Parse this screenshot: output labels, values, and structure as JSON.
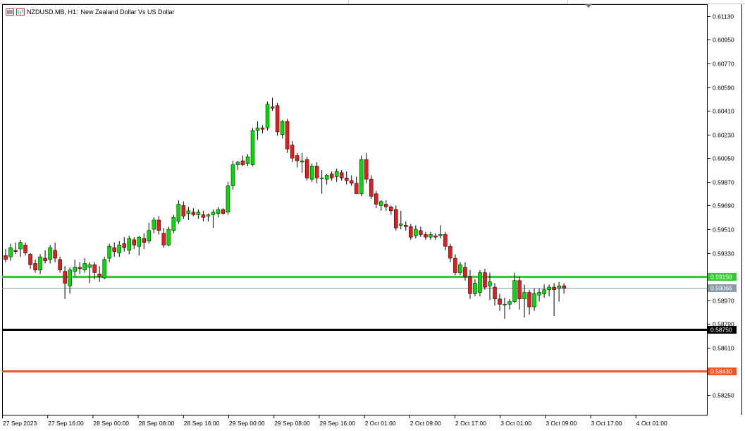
{
  "window": {
    "symbol_label": "NZDUSD.MB, H1:",
    "description": "New Zealand Dollar Vs US Dollar",
    "icons": [
      "chart-window-icon",
      "chart-type-icon"
    ]
  },
  "chart_data": {
    "type": "candlestick",
    "symbol": "NZDUSD.MB",
    "timeframe": "H1",
    "title": "New Zealand Dollar Vs US Dollar",
    "ylim": [
      0.581,
      0.6122
    ],
    "y_ticks": [
      "0.61130",
      "0.60950",
      "0.60770",
      "0.60590",
      "0.60410",
      "0.60230",
      "0.60050",
      "0.59870",
      "0.59690",
      "0.59510",
      "0.59330",
      "0.59150",
      "0.58970",
      "0.58790",
      "0.58610",
      "0.58430",
      "0.58250"
    ],
    "x_ticks": [
      "27 Sep 2023",
      "27 Sep 16:00",
      "28 Sep 00:00",
      "28 Sep 08:00",
      "28 Sep 16:00",
      "29 Sep 00:00",
      "29 Sep 08:00",
      "29 Sep 16:00",
      "2 Oct 01:00",
      "2 Oct 09:00",
      "2 Oct 17:00",
      "3 Oct 01:00",
      "3 Oct 09:00",
      "3 Oct 17:00",
      "4 Oct 01:00"
    ],
    "colors": {
      "up": "#00e000",
      "down": "#e31c1c",
      "grid_line": "#7f8c8d",
      "axis": "#000000"
    },
    "horizontal_lines": [
      {
        "price": 0.5915,
        "label": "0.59150",
        "color": "#33cc33"
      },
      {
        "price": 0.59066,
        "label": "0.59066",
        "color": "#8a9aa6",
        "kind": "bid"
      },
      {
        "price": 0.5875,
        "label": "0.58750",
        "color": "#000000"
      },
      {
        "price": 0.5843,
        "label": "0.58430",
        "color": "#ee5522"
      }
    ],
    "candles": [
      [
        0.5931,
        0.5936,
        0.5926,
        0.5928
      ],
      [
        0.593,
        0.594,
        0.5927,
        0.5937
      ],
      [
        0.5935,
        0.5941,
        0.5932,
        0.5934
      ],
      [
        0.5936,
        0.5943,
        0.593,
        0.5941
      ],
      [
        0.5939,
        0.5941,
        0.5931,
        0.5933
      ],
      [
        0.5932,
        0.5933,
        0.5921,
        0.5924
      ],
      [
        0.5925,
        0.5928,
        0.5918,
        0.592
      ],
      [
        0.592,
        0.5932,
        0.5917,
        0.593
      ],
      [
        0.5929,
        0.5935,
        0.5925,
        0.5927
      ],
      [
        0.5928,
        0.5939,
        0.5925,
        0.5937
      ],
      [
        0.5935,
        0.5941,
        0.5926,
        0.5929
      ],
      [
        0.5928,
        0.593,
        0.5918,
        0.592
      ],
      [
        0.5919,
        0.5923,
        0.5898,
        0.591
      ],
      [
        0.5908,
        0.5922,
        0.5902,
        0.592
      ],
      [
        0.5919,
        0.5928,
        0.5915,
        0.5922
      ],
      [
        0.5922,
        0.5926,
        0.5917,
        0.5921
      ],
      [
        0.592,
        0.5929,
        0.5918,
        0.5925
      ],
      [
        0.5922,
        0.5926,
        0.591,
        0.5924
      ],
      [
        0.5924,
        0.5926,
        0.5913,
        0.5918
      ],
      [
        0.5917,
        0.5923,
        0.5911,
        0.5915
      ],
      [
        0.5914,
        0.593,
        0.5913,
        0.5928
      ],
      [
        0.5929,
        0.594,
        0.5926,
        0.5938
      ],
      [
        0.5937,
        0.5941,
        0.593,
        0.5934
      ],
      [
        0.5933,
        0.5942,
        0.593,
        0.5939
      ],
      [
        0.594,
        0.5945,
        0.5934,
        0.5937
      ],
      [
        0.5935,
        0.5946,
        0.5932,
        0.5944
      ],
      [
        0.5943,
        0.5945,
        0.5936,
        0.5939
      ],
      [
        0.5938,
        0.5946,
        0.5931,
        0.5945
      ],
      [
        0.5944,
        0.5948,
        0.5936,
        0.5941
      ],
      [
        0.5942,
        0.5956,
        0.594,
        0.595
      ],
      [
        0.5951,
        0.596,
        0.5948,
        0.5958
      ],
      [
        0.5958,
        0.5961,
        0.5947,
        0.595
      ],
      [
        0.5948,
        0.5952,
        0.5937,
        0.5939
      ],
      [
        0.5939,
        0.5953,
        0.5938,
        0.5951
      ],
      [
        0.595,
        0.5962,
        0.5948,
        0.596
      ],
      [
        0.5957,
        0.5973,
        0.5955,
        0.597
      ],
      [
        0.5969,
        0.5972,
        0.5959,
        0.5961
      ],
      [
        0.5963,
        0.5968,
        0.5958,
        0.5965
      ],
      [
        0.5964,
        0.5967,
        0.5961,
        0.5962
      ],
      [
        0.5962,
        0.5966,
        0.5959,
        0.5964
      ],
      [
        0.5962,
        0.5965,
        0.5957,
        0.596
      ],
      [
        0.5961,
        0.5963,
        0.5957,
        0.5962
      ],
      [
        0.5962,
        0.5966,
        0.5952,
        0.5964
      ],
      [
        0.5963,
        0.5968,
        0.596,
        0.5966
      ],
      [
        0.5966,
        0.5967,
        0.5962,
        0.5963
      ],
      [
        0.5964,
        0.5987,
        0.5962,
        0.5984
      ],
      [
        0.5984,
        0.6003,
        0.5981,
        0.6
      ],
      [
        0.6,
        0.6003,
        0.5996,
        0.6002
      ],
      [
        0.6003,
        0.6007,
        0.5999,
        0.6
      ],
      [
        0.6001,
        0.6008,
        0.5999,
        0.6006
      ],
      [
        0.6,
        0.6028,
        0.5999,
        0.6026
      ],
      [
        0.6026,
        0.6033,
        0.6019,
        0.6028
      ],
      [
        0.6028,
        0.603,
        0.6024,
        0.6027
      ],
      [
        0.6028,
        0.6048,
        0.6026,
        0.6046
      ],
      [
        0.6044,
        0.6051,
        0.6041,
        0.6043
      ],
      [
        0.6045,
        0.6047,
        0.6022,
        0.6025
      ],
      [
        0.6023,
        0.6034,
        0.602,
        0.6033
      ],
      [
        0.6033,
        0.6035,
        0.6009,
        0.6012
      ],
      [
        0.6015,
        0.6018,
        0.6002,
        0.6005
      ],
      [
        0.6007,
        0.6009,
        0.5998,
        0.6003
      ],
      [
        0.6002,
        0.6009,
        0.5994,
        0.6003
      ],
      [
        0.6004,
        0.6006,
        0.5988,
        0.599
      ],
      [
        0.5989,
        0.6001,
        0.5987,
        0.5999
      ],
      [
        0.5999,
        0.6002,
        0.5986,
        0.599
      ],
      [
        0.599,
        0.5996,
        0.5978,
        0.599
      ],
      [
        0.5989,
        0.5993,
        0.5985,
        0.5992
      ],
      [
        0.5993,
        0.5995,
        0.5988,
        0.599
      ],
      [
        0.5991,
        0.5997,
        0.5987,
        0.5995
      ],
      [
        0.5994,
        0.5996,
        0.5988,
        0.599
      ],
      [
        0.599,
        0.5995,
        0.5985,
        0.5988
      ],
      [
        0.5988,
        0.5992,
        0.5984,
        0.5986
      ],
      [
        0.5986,
        0.5991,
        0.5978,
        0.5978
      ],
      [
        0.5978,
        0.6007,
        0.5976,
        0.6004
      ],
      [
        0.6004,
        0.6009,
        0.5986,
        0.5989
      ],
      [
        0.5989,
        0.5992,
        0.5974,
        0.5976
      ],
      [
        0.5978,
        0.598,
        0.5967,
        0.597
      ],
      [
        0.5969,
        0.5973,
        0.5965,
        0.5972
      ],
      [
        0.597,
        0.5973,
        0.5965,
        0.5968
      ],
      [
        0.5968,
        0.5969,
        0.5962,
        0.5965
      ],
      [
        0.5966,
        0.5969,
        0.595,
        0.5952
      ],
      [
        0.5954,
        0.5965,
        0.5951,
        0.5955
      ],
      [
        0.5954,
        0.5957,
        0.595,
        0.5953
      ],
      [
        0.5953,
        0.5955,
        0.5943,
        0.5945
      ],
      [
        0.5946,
        0.5954,
        0.5944,
        0.5951
      ],
      [
        0.595,
        0.5953,
        0.5945,
        0.5947
      ],
      [
        0.5947,
        0.5949,
        0.5943,
        0.5945
      ],
      [
        0.5945,
        0.5949,
        0.5943,
        0.5947
      ],
      [
        0.5946,
        0.5948,
        0.5943,
        0.5945
      ],
      [
        0.5946,
        0.5954,
        0.5944,
        0.5947
      ],
      [
        0.5947,
        0.5949,
        0.5935,
        0.5938
      ],
      [
        0.5938,
        0.594,
        0.5926,
        0.5929
      ],
      [
        0.5929,
        0.5932,
        0.5916,
        0.5918
      ],
      [
        0.5918,
        0.5926,
        0.5916,
        0.5924
      ],
      [
        0.5922,
        0.5926,
        0.5912,
        0.5915
      ],
      [
        0.5915,
        0.592,
        0.5898,
        0.5902
      ],
      [
        0.5902,
        0.5913,
        0.59,
        0.591
      ],
      [
        0.5903,
        0.592,
        0.59,
        0.5918
      ],
      [
        0.5918,
        0.5921,
        0.5905,
        0.5907
      ],
      [
        0.5908,
        0.5918,
        0.5897,
        0.5911
      ],
      [
        0.5907,
        0.591,
        0.5893,
        0.5898
      ],
      [
        0.5898,
        0.5902,
        0.5889,
        0.5894
      ],
      [
        0.5894,
        0.5899,
        0.5883,
        0.5894
      ],
      [
        0.5894,
        0.5898,
        0.589,
        0.5896
      ],
      [
        0.5896,
        0.5918,
        0.5895,
        0.5912
      ],
      [
        0.5912,
        0.5915,
        0.589,
        0.5898
      ],
      [
        0.5898,
        0.5909,
        0.5884,
        0.5903
      ],
      [
        0.5903,
        0.5905,
        0.5886,
        0.5892
      ],
      [
        0.5892,
        0.5906,
        0.5889,
        0.5902
      ],
      [
        0.5901,
        0.5906,
        0.5896,
        0.5903
      ],
      [
        0.5902,
        0.5909,
        0.5899,
        0.5905
      ],
      [
        0.5905,
        0.5909,
        0.59,
        0.5907
      ],
      [
        0.5907,
        0.591,
        0.5885,
        0.5905
      ],
      [
        0.5906,
        0.5911,
        0.5896,
        0.5908
      ],
      [
        0.5908,
        0.591,
        0.5902,
        0.5906
      ]
    ]
  }
}
